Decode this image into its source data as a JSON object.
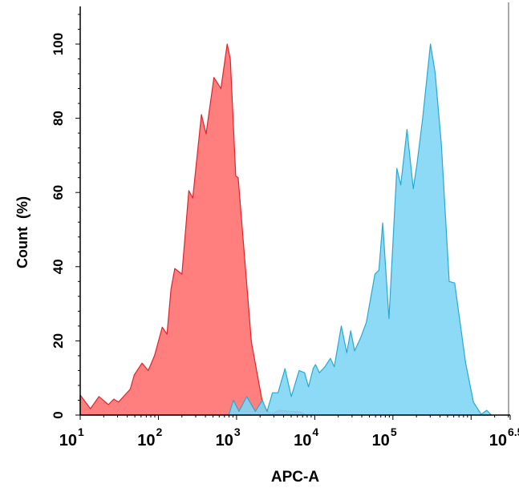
{
  "chart_data": {
    "type": "area",
    "title": "",
    "xlabel": "APC-A",
    "ylabel": "Count  (%)",
    "x_scale": "log",
    "xlim": [
      10,
      3162278
    ],
    "ylim": [
      0,
      100
    ],
    "grid": false,
    "legend": "none",
    "x_ticks": [
      {
        "base": "10",
        "exp": "1",
        "value": 10
      },
      {
        "base": "10",
        "exp": "2",
        "value": 100
      },
      {
        "base": "10",
        "exp": "3",
        "value": 1000
      },
      {
        "base": "10",
        "exp": "4",
        "value": 10000
      },
      {
        "base": "10",
        "exp": "5",
        "value": 100000
      },
      {
        "base": "10",
        "exp": "6.5",
        "value": 3162278
      }
    ],
    "y_ticks": [
      "0",
      "20",
      "40",
      "60",
      "80",
      "100"
    ],
    "series": [
      {
        "color": "#ff7f7f",
        "stroke": "#e0242b",
        "x": [
          10,
          13.5,
          17.4,
          22.9,
          26.9,
          30.9,
          43.7,
          49,
          61.7,
          74.1,
          89.1,
          112,
          129,
          145,
          162,
          200,
          245,
          275,
          355,
          407,
          513,
          631,
          759,
          832,
          977,
          1047,
          1549,
          2188,
          2754,
          3467,
          6607,
          7762
        ],
        "y": [
          5.4,
          1.7,
          5,
          2.8,
          4.3,
          3.5,
          7,
          10.8,
          14,
          12,
          16,
          23.7,
          21.8,
          34,
          39.5,
          38,
          60.5,
          58.5,
          81,
          75.8,
          91,
          88,
          100,
          96,
          64.4,
          64,
          19.7,
          2.4,
          0.2,
          1.3,
          0.8,
          0
        ]
      },
      {
        "color": "#7fd6f5",
        "stroke": "#2aa8d0",
        "x": [
          794,
          912,
          1072,
          1349,
          1738,
          2138,
          2455,
          2884,
          3388,
          4169,
          5012,
          6310,
          7413,
          8318,
          9550,
          10233,
          11482,
          13490,
          15849,
          17783,
          21878,
          25704,
          28840,
          32359,
          38905,
          45709,
          58884,
          66069,
          74131,
          89125,
          112202,
          125893,
          151356,
          181970,
          204174,
          239883,
          301995,
          346737,
          416869,
          524807,
          616595,
          851138,
          1071519,
          1348963,
          1584893,
          1819701
        ],
        "y": [
          0,
          4,
          1,
          5,
          1,
          4,
          1,
          6,
          6,
          12.5,
          5,
          12,
          11.4,
          7.6,
          12.5,
          13.6,
          11.4,
          13,
          15.3,
          13,
          24,
          16.8,
          22.7,
          17.3,
          21,
          25,
          38,
          39,
          51.8,
          26,
          66.5,
          62,
          77,
          61,
          68,
          80,
          100,
          92.4,
          73,
          36,
          35.6,
          14,
          3.5,
          0.2,
          1.3,
          0
        ]
      }
    ]
  }
}
